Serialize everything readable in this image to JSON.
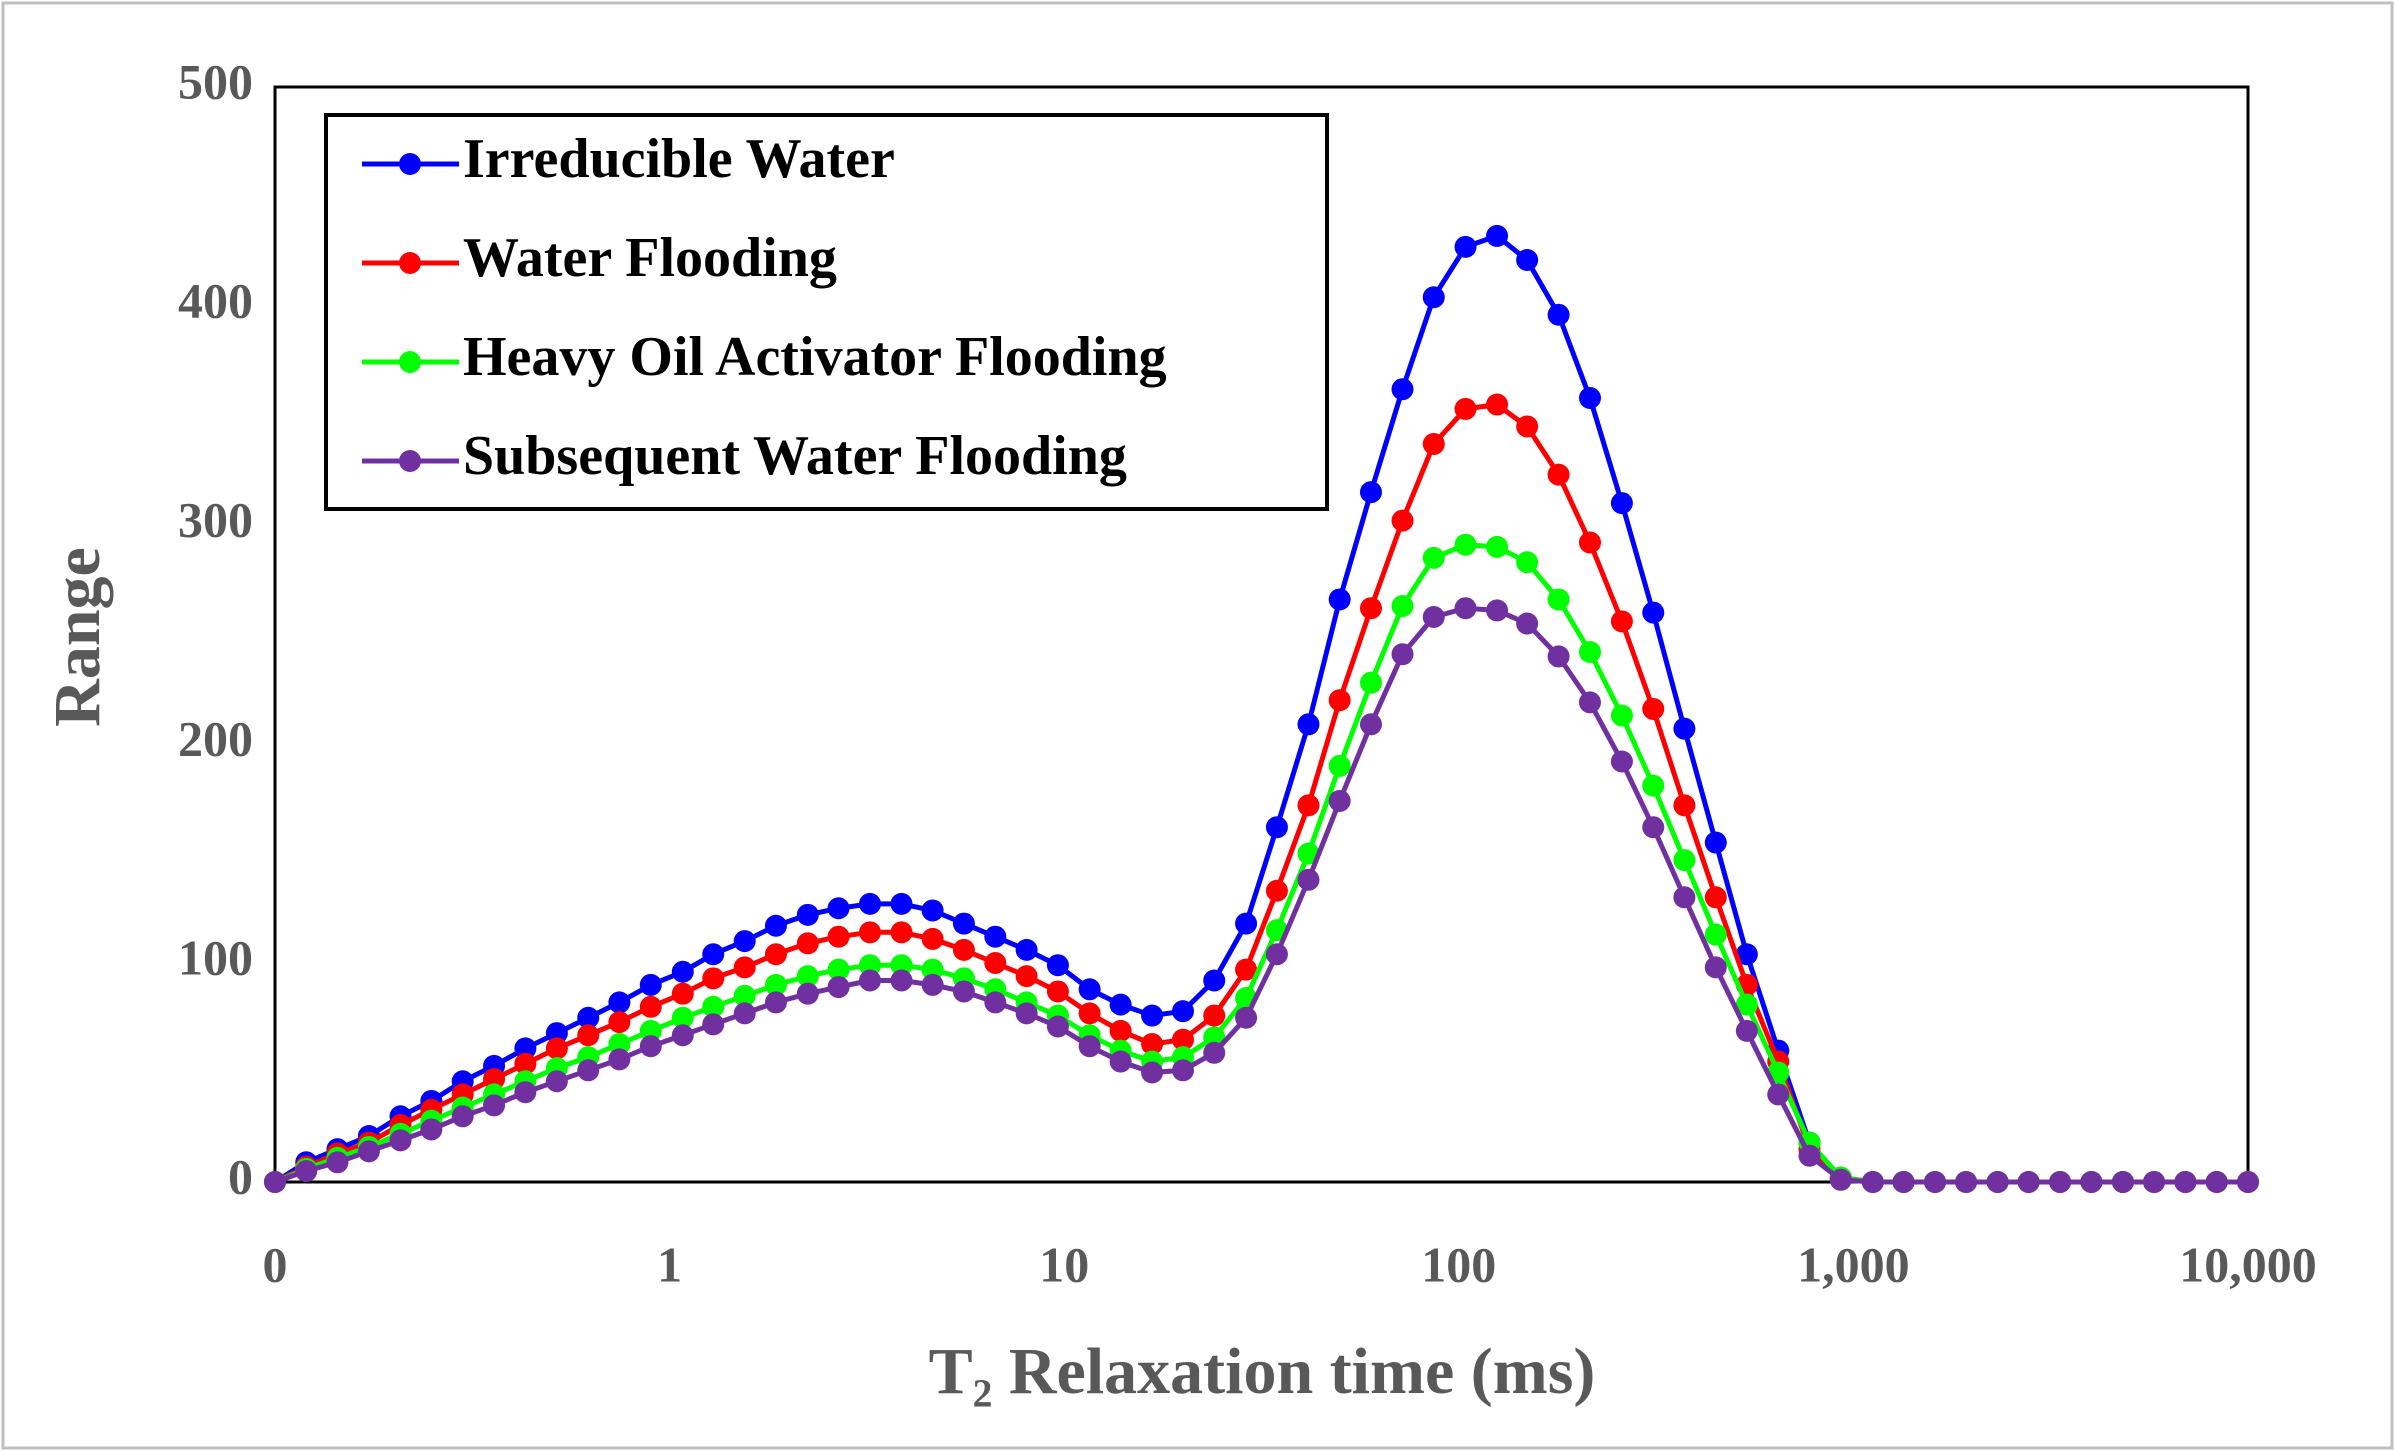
{
  "chart_data": {
    "type": "line",
    "xlabel": "T₂ Relaxation time  (ms)",
    "ylabel": "Range",
    "xscale": "log",
    "xlim": [
      0.1,
      10000
    ],
    "xticks": [
      {
        "value": 0.1,
        "label": "0"
      },
      1,
      10,
      100,
      {
        "value": 1000,
        "label": "1,000"
      },
      {
        "value": 10000,
        "label": "10,000"
      }
    ],
    "ylim": [
      0,
      500
    ],
    "yticks": [
      0,
      100,
      200,
      300,
      400,
      500
    ],
    "grid": false,
    "legend": "upper left",
    "x": [
      0.1,
      0.12,
      0.144,
      0.173,
      0.208,
      0.249,
      0.299,
      0.359,
      0.431,
      0.518,
      0.622,
      0.746,
      0.896,
      1.08,
      1.29,
      1.55,
      1.86,
      2.24,
      2.68,
      3.22,
      3.87,
      4.64,
      5.57,
      6.69,
      8.03,
      9.64,
      11.6,
      13.9,
      16.7,
      20.0,
      24.0,
      28.9,
      34.6,
      41.6,
      49.9,
      59.9,
      72.0,
      86.4,
      104,
      125,
      149,
      179,
      215,
      259,
      311,
      373,
      448,
      537,
      645,
      774,
      929,
      1120,
      1340,
      1610,
      1930,
      2320,
      2780,
      3340,
      4010,
      4820,
      5780,
      6940,
      8330,
      10000
    ],
    "series": [
      {
        "name": "Irreducible Water",
        "color": "#0000ff",
        "values": [
          0,
          9,
          15,
          21,
          30,
          37,
          46,
          53,
          61,
          68,
          75,
          82,
          90,
          96,
          104,
          110,
          117,
          122,
          125,
          127,
          127,
          124,
          118,
          112,
          106,
          99,
          88,
          81,
          76,
          78,
          92,
          118,
          162,
          209,
          266,
          315,
          362,
          404,
          427,
          432,
          421,
          396,
          358,
          310,
          260,
          207,
          155,
          104,
          60,
          18,
          2,
          0,
          0,
          0,
          0,
          0,
          0,
          0,
          0,
          0,
          0,
          0,
          0,
          0
        ]
      },
      {
        "name": "Water Flooding",
        "color": "#ff0000",
        "values": [
          0,
          7,
          13,
          18,
          26,
          33,
          40,
          47,
          54,
          61,
          67,
          73,
          80,
          86,
          93,
          98,
          104,
          109,
          112,
          114,
          114,
          111,
          106,
          100,
          94,
          87,
          77,
          69,
          63,
          65,
          76,
          97,
          133,
          172,
          220,
          262,
          302,
          337,
          353,
          355,
          345,
          323,
          292,
          256,
          216,
          172,
          130,
          90,
          55,
          15,
          2,
          0,
          0,
          0,
          0,
          0,
          0,
          0,
          0,
          0,
          0,
          0,
          0,
          0
        ]
      },
      {
        "name": "Heavy Oil Activator Flooding",
        "color": "#00ff00",
        "values": [
          0,
          6,
          11,
          16,
          22,
          28,
          34,
          40,
          46,
          52,
          57,
          63,
          69,
          75,
          80,
          85,
          90,
          94,
          97,
          99,
          99,
          97,
          93,
          88,
          82,
          76,
          67,
          60,
          55,
          57,
          66,
          84,
          115,
          150,
          190,
          228,
          263,
          285,
          291,
          290,
          283,
          266,
          242,
          213,
          181,
          147,
          113,
          81,
          50,
          18,
          2,
          0,
          0,
          0,
          0,
          0,
          0,
          0,
          0,
          0,
          0,
          0,
          0,
          0
        ]
      },
      {
        "name": "Subsequent Water Flooding",
        "color": "#7030a0",
        "values": [
          0,
          5,
          9,
          14,
          19,
          24,
          30,
          35,
          41,
          46,
          51,
          56,
          62,
          67,
          72,
          77,
          82,
          86,
          89,
          92,
          92,
          90,
          87,
          82,
          77,
          71,
          62,
          55,
          50,
          51,
          59,
          75,
          104,
          138,
          174,
          209,
          241,
          258,
          262,
          261,
          255,
          240,
          219,
          192,
          162,
          130,
          98,
          69,
          40,
          12,
          1,
          0,
          0,
          0,
          0,
          0,
          0,
          0,
          0,
          0,
          0,
          0,
          0,
          0
        ]
      }
    ]
  }
}
